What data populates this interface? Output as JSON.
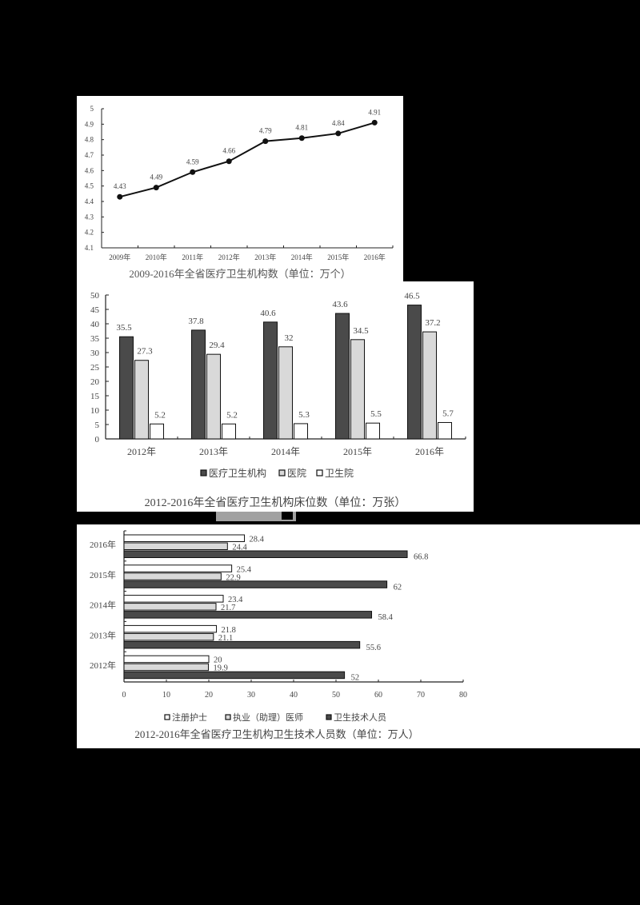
{
  "chart_data": [
    {
      "type": "line",
      "title": "2009-2016年全省医疗卫生机构数（单位：万个）",
      "categories": [
        "2009年",
        "2010年",
        "2011年",
        "2012年",
        "2013年",
        "2014年",
        "2015年",
        "2016年"
      ],
      "values": [
        4.43,
        4.49,
        4.59,
        4.66,
        4.79,
        4.81,
        4.84,
        4.91
      ],
      "value_labels": [
        "4.43",
        "4.49",
        "4.59",
        "4.66",
        "4.79",
        "4.81",
        "4.84",
        "4.91"
      ],
      "xlabel": "",
      "ylabel": "",
      "ylim": [
        4.1,
        5
      ],
      "yticks": [
        "4.1",
        "4.2",
        "4.3",
        "4.4",
        "4.5",
        "4.6",
        "4.7",
        "4.8",
        "4.9",
        "5"
      ],
      "grid": false,
      "legend": null
    },
    {
      "type": "bar",
      "title": "2012-2016年全省医疗卫生机构床位数（单位：万张）",
      "categories": [
        "2012年",
        "2013年",
        "2014年",
        "2015年",
        "2016年"
      ],
      "series": [
        {
          "name": "医疗卫生机构",
          "color": "#4a4a4a",
          "values": [
            35.5,
            37.8,
            40.6,
            43.6,
            46.5
          ]
        },
        {
          "name": "医院",
          "color": "#d9d9d9",
          "values": [
            27.3,
            29.4,
            32,
            34.5,
            37.2
          ]
        },
        {
          "name": "卫生院",
          "color": "#ffffff",
          "values": [
            5.2,
            5.2,
            5.3,
            5.5,
            5.7
          ]
        }
      ],
      "xlabel": "",
      "ylabel": "",
      "ylim": [
        0,
        50
      ],
      "yticks": [
        "0",
        "5",
        "10",
        "15",
        "20",
        "25",
        "30",
        "35",
        "40",
        "45",
        "50"
      ],
      "grid": false,
      "legend_position": "bottom"
    },
    {
      "type": "bar",
      "orientation": "horizontal",
      "title": "2012-2016年全省医疗卫生机构卫生技术人员数（单位：万人）",
      "categories": [
        "2012年",
        "2013年",
        "2014年",
        "2015年",
        "2016年"
      ],
      "series": [
        {
          "name": "注册护士",
          "color": "#ffffff",
          "values": [
            20,
            21.8,
            23.4,
            25.4,
            28.4
          ]
        },
        {
          "name": "执业（助理）医师",
          "color": "#d9d9d9",
          "values": [
            19.9,
            21.1,
            21.7,
            22.9,
            24.4
          ]
        },
        {
          "name": "卫生技术人员",
          "color": "#4a4a4a",
          "values": [
            52,
            55.6,
            58.4,
            62,
            66.8
          ]
        }
      ],
      "xlabel": "",
      "ylabel": "",
      "xlim": [
        0,
        80
      ],
      "xticks": [
        "0",
        "10",
        "20",
        "30",
        "40",
        "50",
        "60",
        "70",
        "80"
      ],
      "grid": false,
      "legend_position": "bottom"
    }
  ],
  "charts": {
    "c1": {
      "title": "2009-2016年全省医疗卫生机构数（单位：万个）"
    },
    "c2": {
      "title": "2012-2016年全省医疗卫生机构床位数（单位：万张）",
      "legend": [
        "医疗卫生机构",
        "医院",
        "卫生院"
      ]
    },
    "c3": {
      "title": "2012-2016年全省医疗卫生机构卫生技术人员数（单位：万人）",
      "legend": [
        "注册护士",
        "执业（助理）医师",
        "卫生技术人员"
      ]
    }
  }
}
